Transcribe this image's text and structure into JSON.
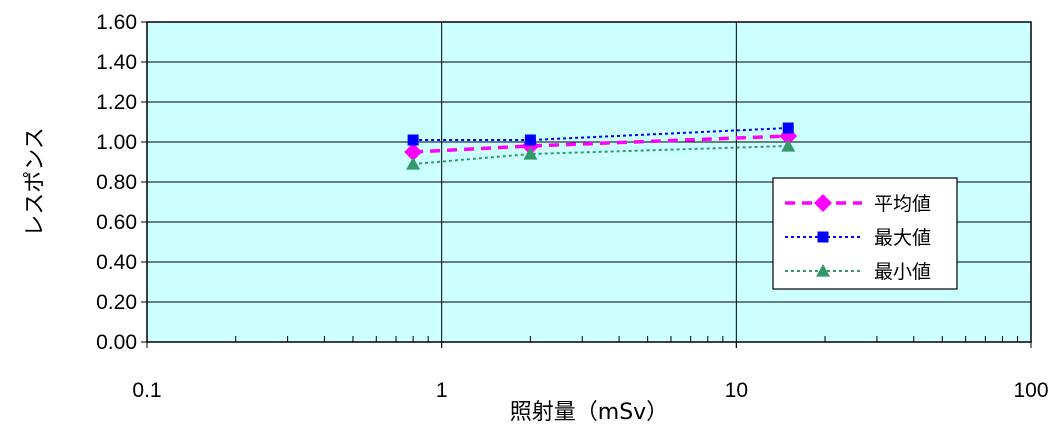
{
  "chart_data": {
    "type": "line",
    "xlabel": "照射量（mSv）",
    "ylabel": "レスポンス",
    "x_scale": "log",
    "xlim": [
      0.1,
      100
    ],
    "ylim": [
      0,
      1.6
    ],
    "x_ticks": [
      "0.1",
      "1",
      "10",
      "100"
    ],
    "y_ticks": [
      "0.00",
      "0.20",
      "0.40",
      "0.60",
      "0.80",
      "1.00",
      "1.20",
      "1.40",
      "1.60"
    ],
    "grid": true,
    "legend_position": "right",
    "x": [
      0.8,
      2,
      15
    ],
    "series": [
      {
        "name": "平均値",
        "values": [
          0.95,
          0.98,
          1.03
        ],
        "color": "#ff00ff",
        "marker": "diamond",
        "line_style": "dashed"
      },
      {
        "name": "最大値",
        "values": [
          1.01,
          1.01,
          1.07
        ],
        "color": "#0000ff",
        "marker": "square",
        "line_style": "dotted"
      },
      {
        "name": "最小値",
        "values": [
          0.89,
          0.94,
          0.98
        ],
        "color": "#339966",
        "marker": "triangle",
        "line_style": "dotted"
      }
    ],
    "colors": {
      "plot_background": "#ccffff",
      "grid": "#000000"
    }
  }
}
